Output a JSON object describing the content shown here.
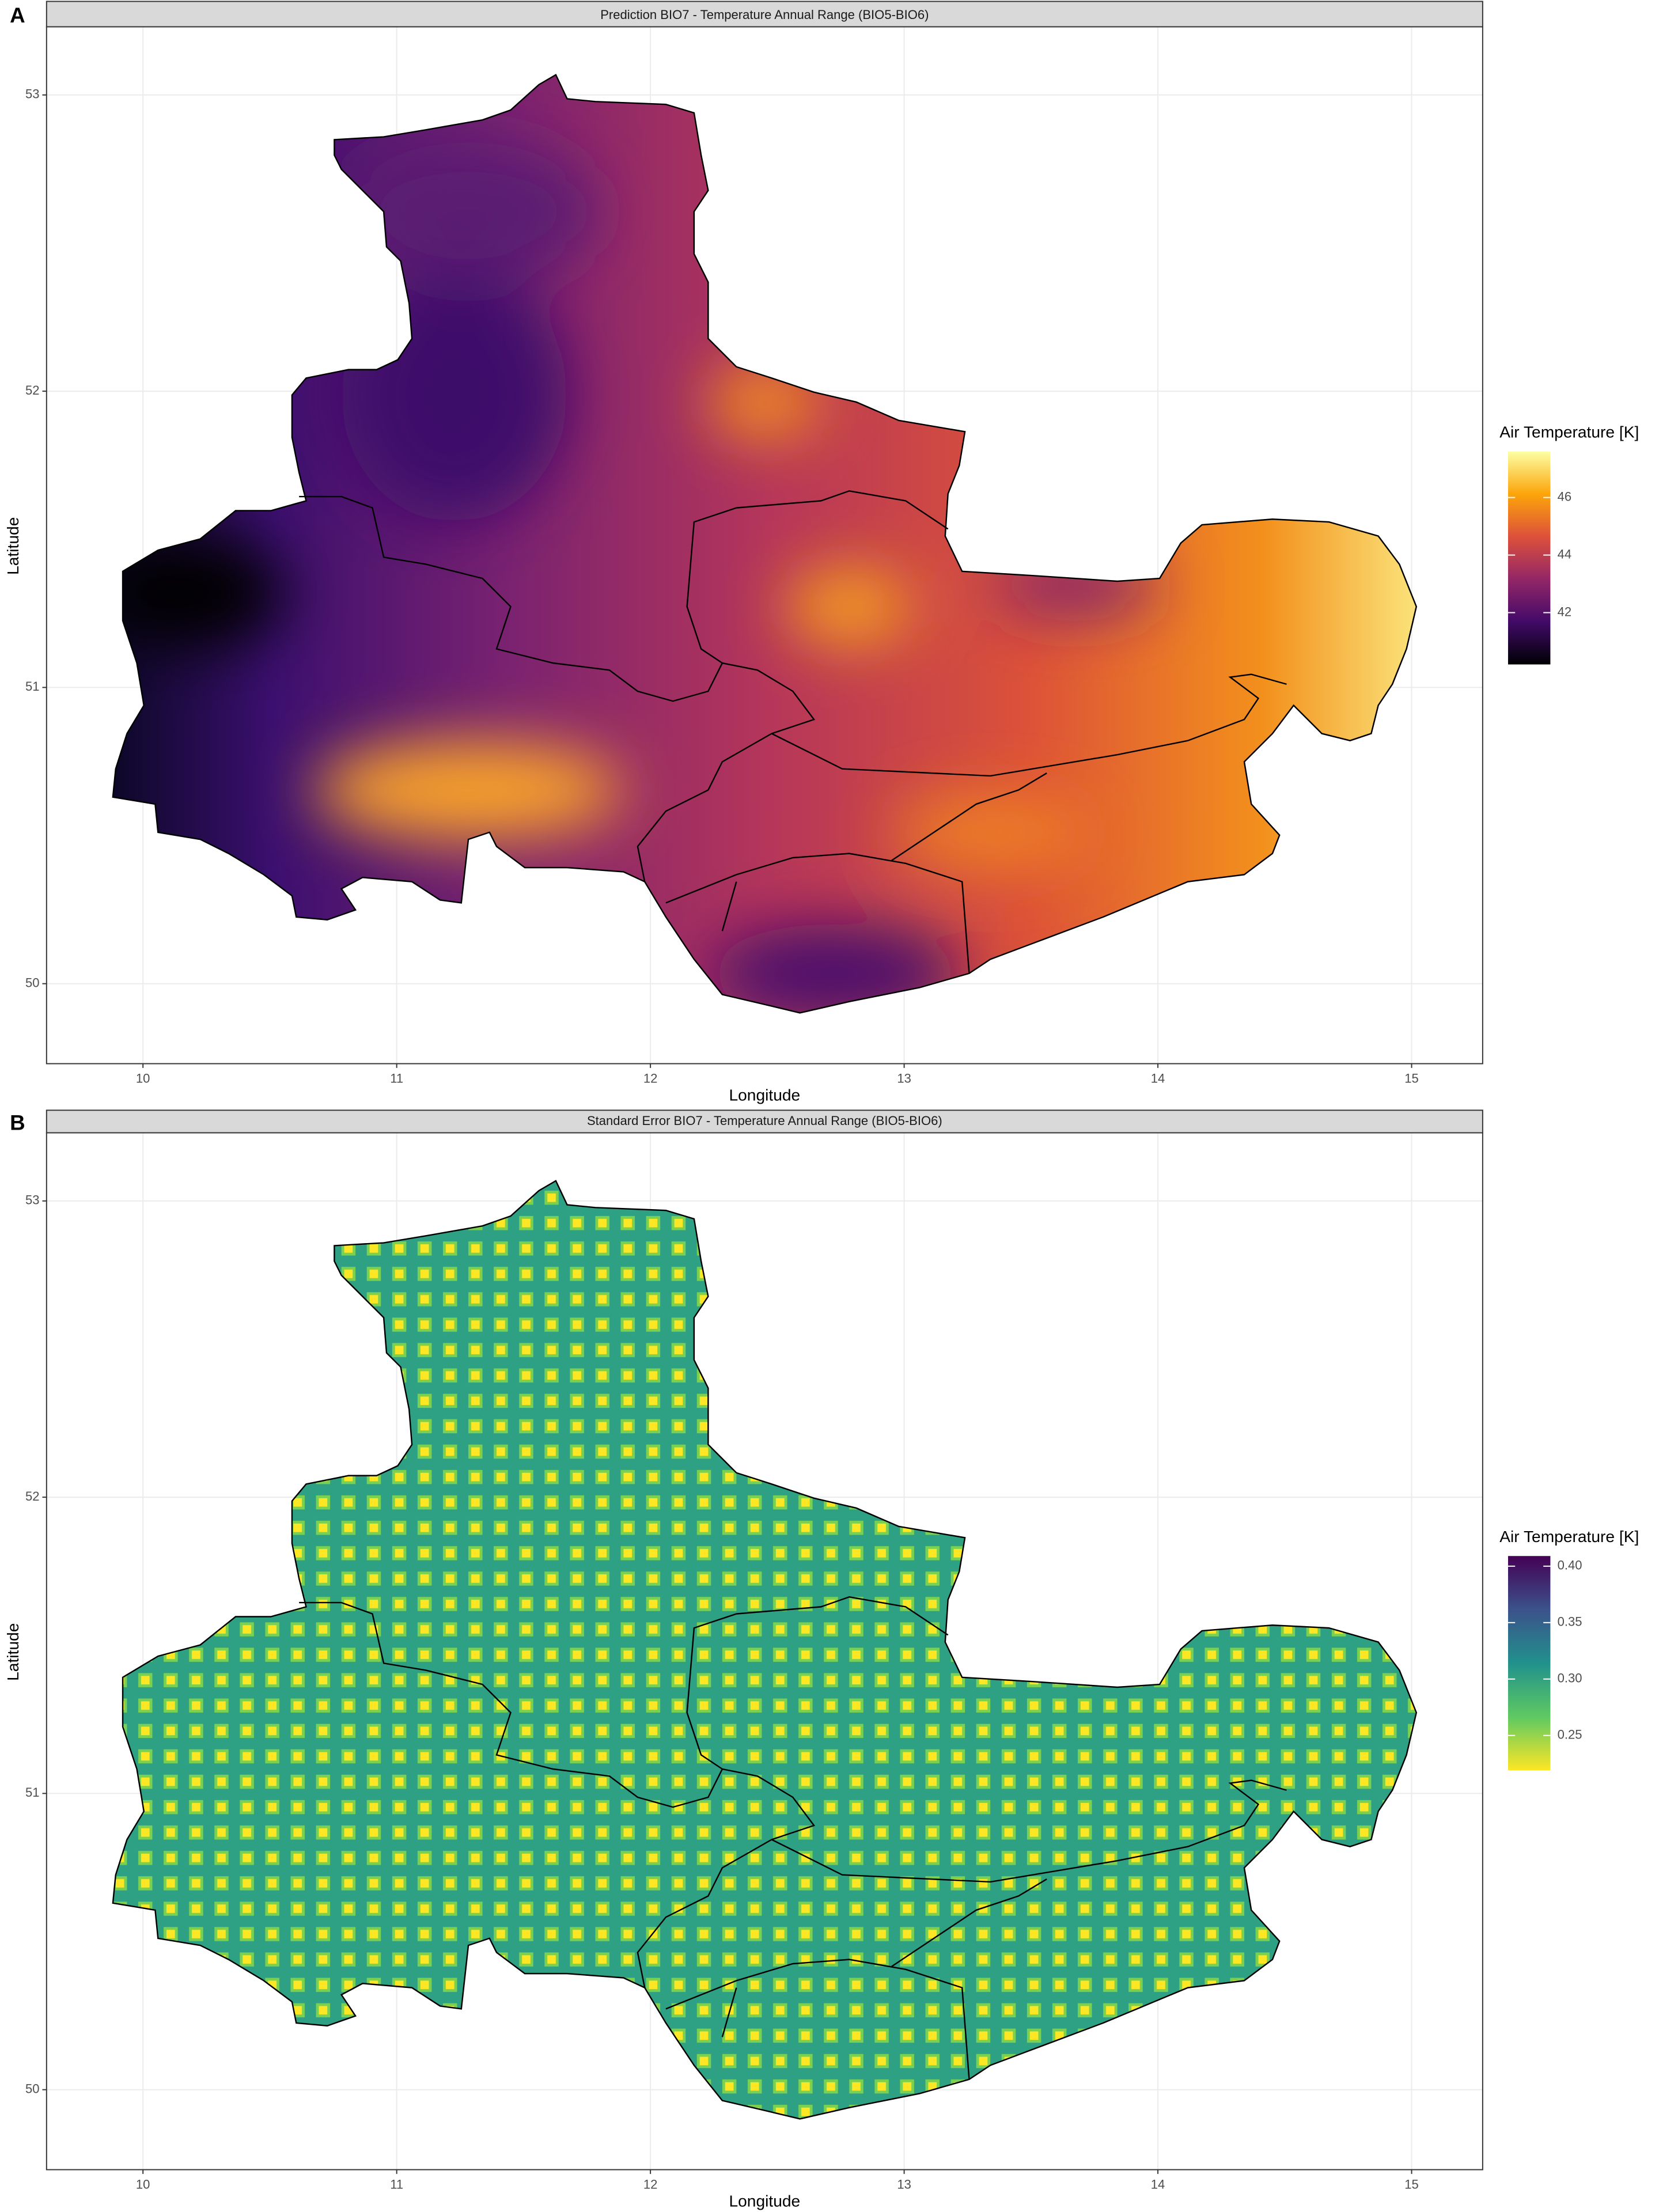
{
  "figure": {
    "panels": [
      {
        "label": "A",
        "title": "Prediction BIO7 - Temperature Annual Range (BIO5-BIO6)",
        "x_label": "Longitude",
        "y_label": "Latitude",
        "xlim": [
          9.62,
          15.28
        ],
        "ylim": [
          49.73,
          53.23
        ],
        "xticks": [
          10,
          11,
          12,
          13,
          14,
          15
        ],
        "yticks": [
          50,
          51,
          52,
          53
        ],
        "legend": {
          "title": "Air Temperature [K]",
          "lim": [
            40.2,
            47.6
          ],
          "ticks": [
            42,
            44,
            46
          ]
        }
      },
      {
        "label": "B",
        "title": "Standard Error BIO7 - Temperature Annual Range (BIO5-BIO6)",
        "x_label": "Longitude",
        "y_label": "Latitude",
        "xlim": [
          9.62,
          15.28
        ],
        "ylim": [
          49.73,
          53.23
        ],
        "xticks": [
          10,
          11,
          12,
          13,
          14,
          15
        ],
        "yticks": [
          50,
          51,
          52,
          53
        ],
        "legend": {
          "title": "Air Temperature [K]",
          "lim": [
            0.219,
            0.409
          ],
          "ticks": [
            0.25,
            {
              "value": 0.3,
              "label": "0.30"
            },
            0.35,
            {
              "value": 0.4,
              "label": "0.40"
            }
          ]
        }
      }
    ]
  }
}
